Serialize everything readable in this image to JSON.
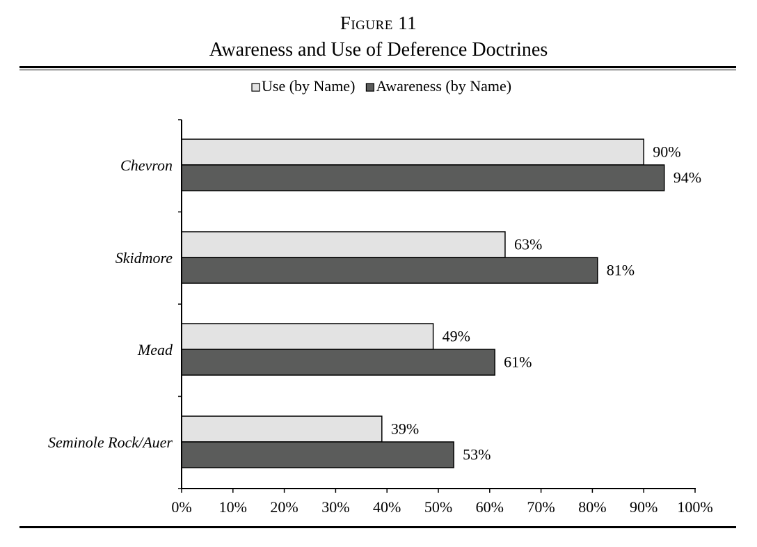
{
  "figure": {
    "label": "Figure 11",
    "title": "Awareness and Use of Deference Doctrines"
  },
  "colors": {
    "use": "#e3e3e3",
    "awareness": "#5b5c5b",
    "stroke": "#000000"
  },
  "chart_data": {
    "type": "bar",
    "orientation": "horizontal",
    "title": "Awareness and Use of Deference Doctrines",
    "categories": [
      "Chevron",
      "Skidmore",
      "Mead",
      "Seminole Rock/Auer"
    ],
    "series": [
      {
        "name": "Use (by Name)",
        "values": [
          90,
          63,
          49,
          39
        ],
        "color_key": "use"
      },
      {
        "name": "Awareness (by Name)",
        "values": [
          94,
          81,
          61,
          53
        ],
        "color_key": "awareness"
      }
    ],
    "value_labels": [
      [
        "90%",
        "63%",
        "49%",
        "39%"
      ],
      [
        "94%",
        "81%",
        "61%",
        "53%"
      ]
    ],
    "xticks": [
      0,
      10,
      20,
      30,
      40,
      50,
      60,
      70,
      80,
      90,
      100
    ],
    "xtick_labels": [
      "0%",
      "10%",
      "20%",
      "30%",
      "40%",
      "50%",
      "60%",
      "70%",
      "80%",
      "90%",
      "100%"
    ],
    "xlim": [
      0,
      100
    ],
    "xlabel": "",
    "ylabel": "",
    "legend": "top-center",
    "grid": false
  }
}
